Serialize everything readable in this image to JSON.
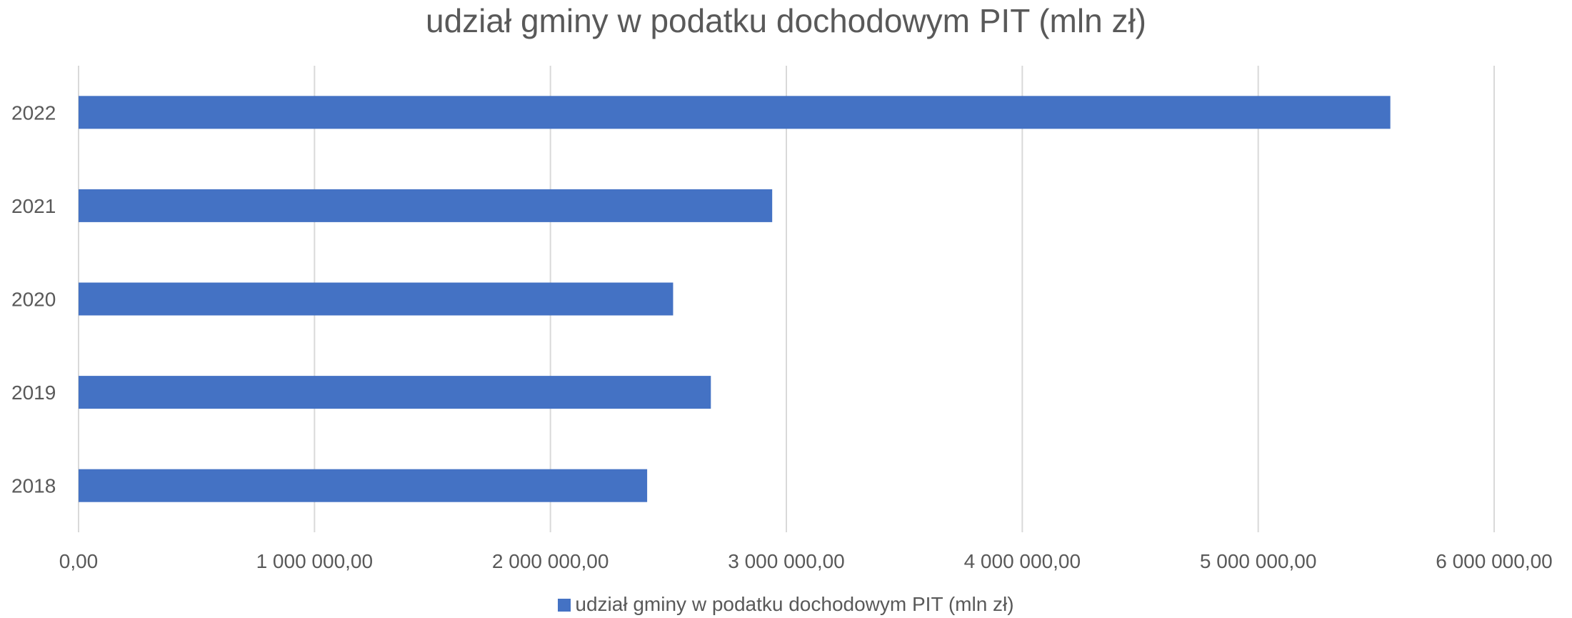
{
  "chart_data": {
    "type": "bar",
    "orientation": "horizontal",
    "title": "udział gminy w podatku dochodowym PIT (mln zł)",
    "categories": [
      "2022",
      "2021",
      "2020",
      "2019",
      "2018"
    ],
    "series": [
      {
        "name": "udział gminy w podatku dochodowym PIT (mln zł)",
        "values": [
          5560000,
          2940000,
          2520000,
          2680000,
          2410000
        ],
        "color": "#4472C4"
      }
    ],
    "xlim": [
      0,
      6000000
    ],
    "x_ticks": [
      0,
      1000000,
      2000000,
      3000000,
      4000000,
      5000000,
      6000000
    ],
    "x_tick_labels": [
      "0,00",
      "1 000 000,00",
      "2 000 000,00",
      "3 000 000,00",
      "4 000 000,00",
      "5 000 000,00",
      "6 000 000,00"
    ],
    "xlabel": "",
    "ylabel": "",
    "grid": "vertical",
    "legend": "bottom"
  }
}
